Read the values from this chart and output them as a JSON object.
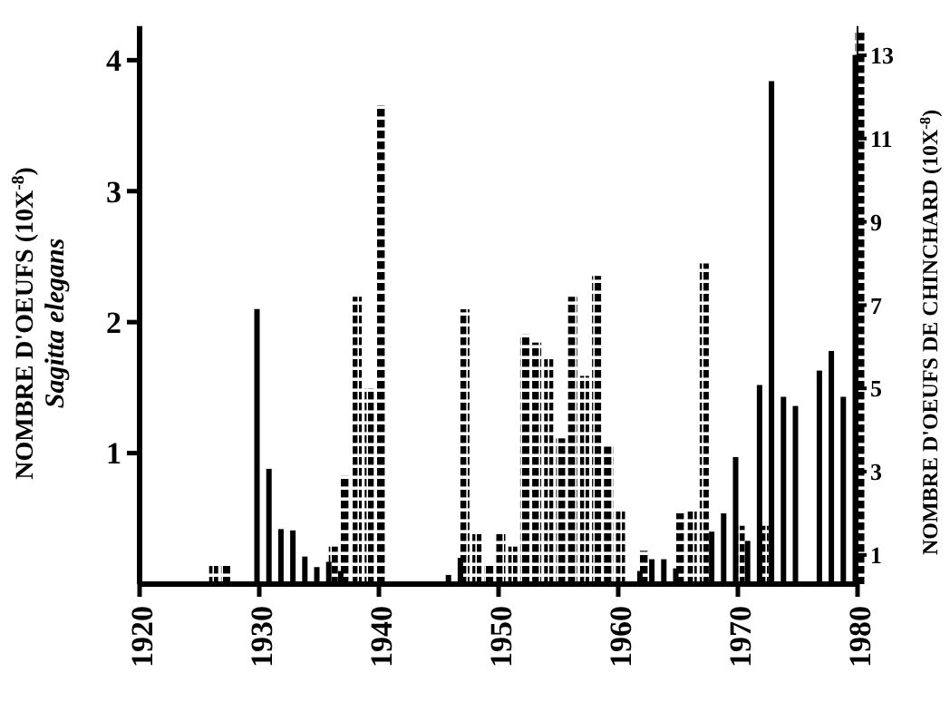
{
  "chart_data": {
    "type": "bar",
    "ylabel": "NOMBRE D'OEUFS (10X$^{-8}$)",
    "y2label": "NOMBRE D'OEUFS DE CHINCHARD (10X$^{-8}$)",
    "xlim": [
      1920,
      1980
    ],
    "xticks": [
      1920,
      1930,
      1940,
      1950,
      1960,
      1970,
      1980
    ],
    "ylim": [
      0,
      4.26
    ],
    "yticks": [
      1,
      2,
      3,
      4
    ],
    "y2lim": [
      0.3,
      13.7
    ],
    "y2ticks": [
      1,
      3,
      5,
      7,
      9,
      11,
      13
    ],
    "series": [
      {
        "name": "Sagitta elegans",
        "color": "#000000",
        "line_style": "solid",
        "axis": "y",
        "x": [
          1930,
          1931,
          1932,
          1933,
          1934,
          1935,
          1936,
          1937,
          1946,
          1947,
          1962,
          1963,
          1964,
          1965,
          1968,
          1969,
          1970,
          1971,
          1972,
          1973,
          1974,
          1975,
          1977,
          1978,
          1979,
          1980
        ],
        "values": [
          2.1,
          0.88,
          0.42,
          0.41,
          0.21,
          0.13,
          0.17,
          0.1,
          0.07,
          0.2,
          0.1,
          0.19,
          0.19,
          0.12,
          0.4,
          0.54,
          0.97,
          0.33,
          1.52,
          3.84,
          1.43,
          1.36,
          1.63,
          1.78,
          1.43,
          4.04
        ]
      },
      {
        "color": "#000000",
        "line_style": "dashed",
        "axis": "y2",
        "x": [
          1926,
          1927,
          1936,
          1937,
          1938,
          1939,
          1940,
          1947,
          1948,
          1949,
          1950,
          1951,
          1952,
          1953,
          1954,
          1955,
          1956,
          1957,
          1958,
          1959,
          1960,
          1962,
          1965,
          1966,
          1967,
          1970,
          1972,
          1980
        ],
        "values": [
          0.8,
          0.8,
          1.2,
          2.9,
          7.2,
          5.0,
          11.8,
          6.9,
          1.5,
          0.8,
          1.5,
          1.2,
          6.3,
          6.1,
          5.7,
          3.8,
          7.2,
          5.3,
          7.7,
          3.6,
          2.1,
          1.1,
          2.0,
          2.1,
          8.0,
          1.7,
          1.7,
          13.6
        ]
      }
    ]
  }
}
